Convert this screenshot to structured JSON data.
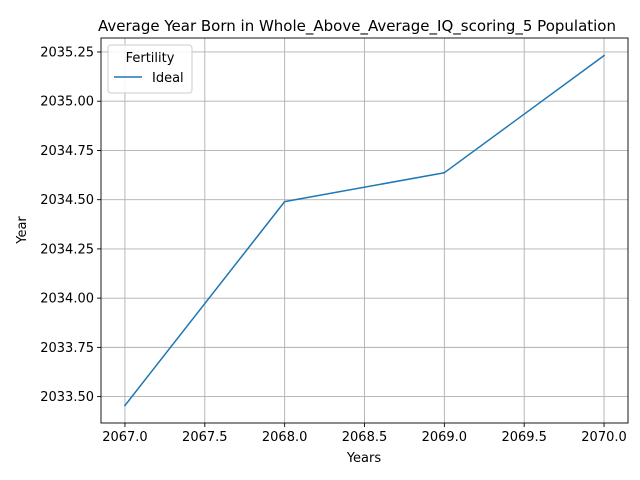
{
  "chart_data": {
    "type": "line",
    "title": "Average Year Born in Whole_Above_Average_IQ_scoring_5 Population",
    "xlabel": "Years",
    "ylabel": "Year",
    "x": [
      2067,
      2068,
      2069,
      2070
    ],
    "series": [
      {
        "name": "Ideal",
        "values": [
          2033.455,
          2034.49,
          2034.637,
          2035.232
        ],
        "color": "#1f77b4"
      }
    ],
    "xlim": [
      2066.85,
      2070.15
    ],
    "ylim": [
      2033.366,
      2035.321
    ],
    "xticks": [
      "2067.0",
      "2067.5",
      "2068.0",
      "2068.5",
      "2069.0",
      "2069.5",
      "2070.0"
    ],
    "yticks": [
      "2033.50",
      "2033.75",
      "2034.00",
      "2034.25",
      "2034.50",
      "2034.75",
      "2035.00",
      "2035.25"
    ],
    "grid": true,
    "legend": {
      "title": "Fertility",
      "placement": "upper-left"
    }
  }
}
